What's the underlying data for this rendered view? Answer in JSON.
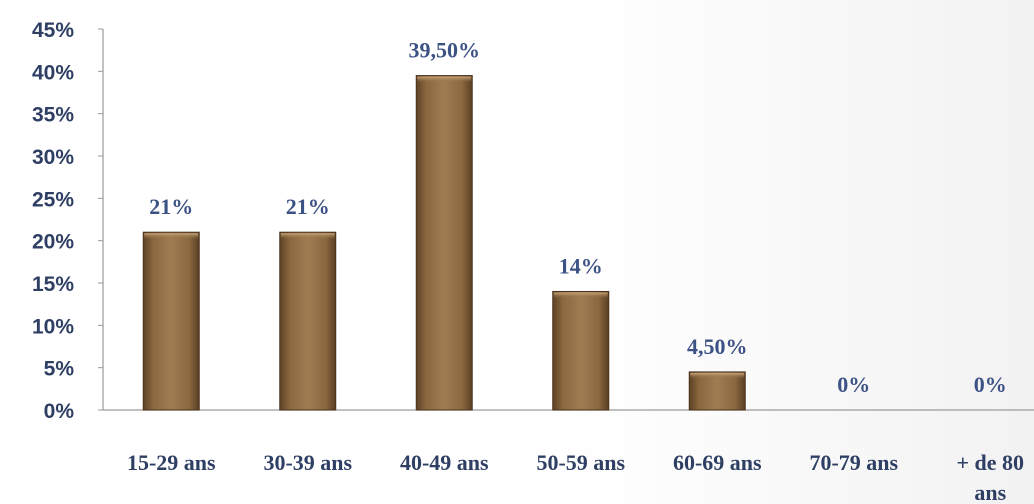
{
  "chart_data": {
    "type": "bar",
    "categories": [
      "15-29 ans",
      "30-39 ans",
      "40-49 ans",
      "50-59 ans",
      "60-69 ans",
      "70-79 ans",
      "+ de 80 ans"
    ],
    "category_lines": [
      [
        "15-29 ans"
      ],
      [
        "30-39 ans"
      ],
      [
        "40-49 ans"
      ],
      [
        "50-59 ans"
      ],
      [
        "60-69 ans"
      ],
      [
        "70-79 ans"
      ],
      [
        "+ de 80",
        "ans"
      ]
    ],
    "values": [
      21,
      21,
      39.5,
      14,
      4.5,
      0,
      0
    ],
    "data_labels": [
      "21%",
      "21%",
      "39,50%",
      "14%",
      "4,50%",
      "0%",
      "0%"
    ],
    "yticks": [
      "0%",
      "5%",
      "10%",
      "15%",
      "20%",
      "25%",
      "30%",
      "35%",
      "40%",
      "45%"
    ],
    "ylim": [
      0,
      45
    ],
    "bar_color": "#8b6a43",
    "label_color": "#3c5285",
    "grid": false,
    "title": "",
    "xlabel": "",
    "ylabel": ""
  }
}
